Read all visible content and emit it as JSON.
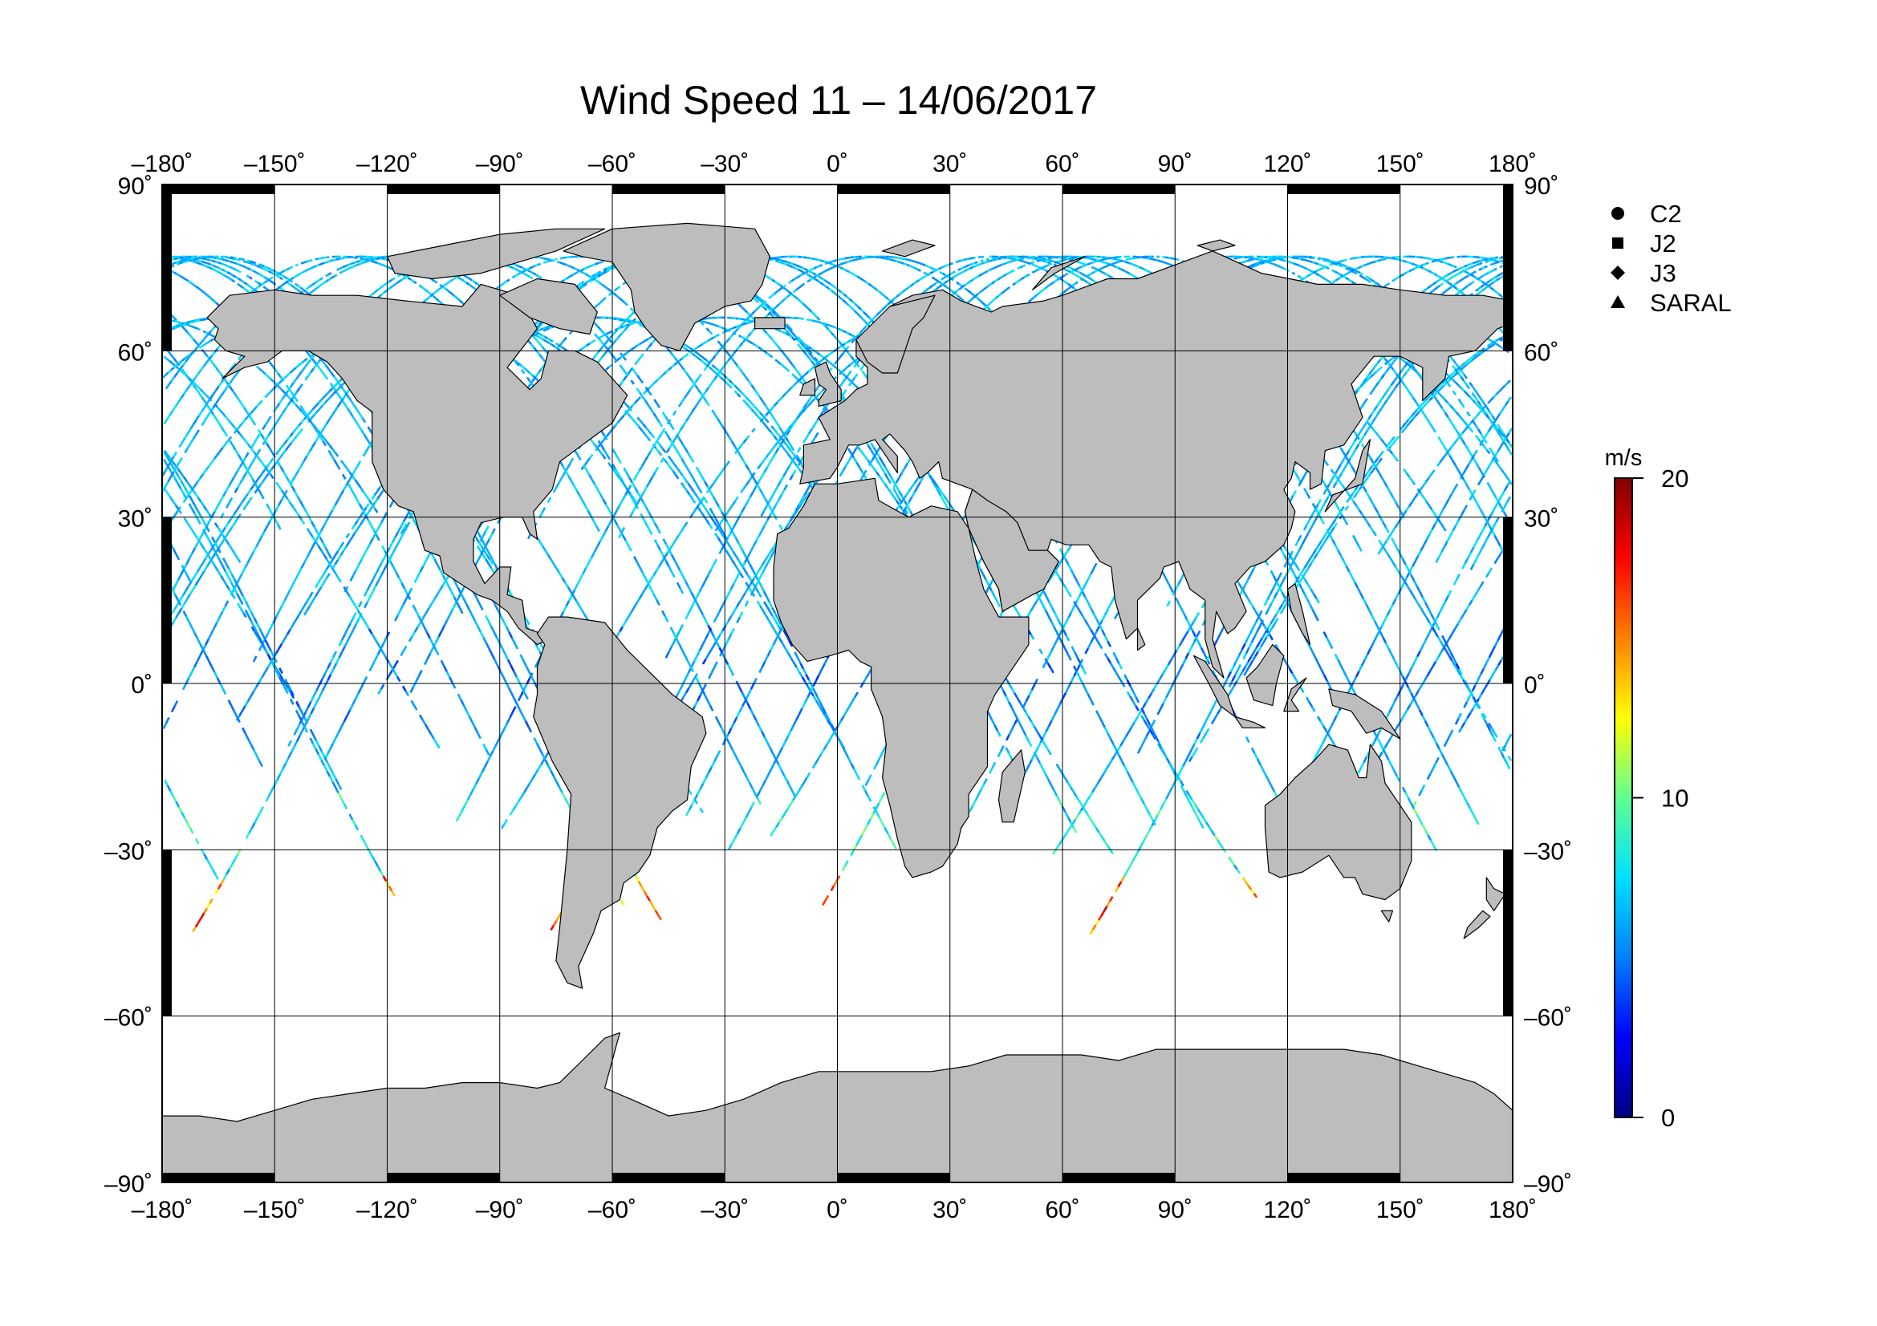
{
  "title": "Wind Speed 11 – 14/06/2017",
  "lon_ticks": [
    "–180˚",
    "–150˚",
    "–120˚",
    "–90˚",
    "–60˚",
    "–30˚",
    "0˚",
    "30˚",
    "60˚",
    "90˚",
    "120˚",
    "150˚",
    "180˚"
  ],
  "lat_ticks": [
    "90˚",
    "60˚",
    "30˚",
    "0˚",
    "–30˚",
    "–60˚",
    "–90˚"
  ],
  "legend": [
    {
      "label": "C2",
      "marker": "circle"
    },
    {
      "label": "J2",
      "marker": "square"
    },
    {
      "label": "J3",
      "marker": "diamond"
    },
    {
      "label": "SARAL",
      "marker": "triangle"
    }
  ],
  "colorbar": {
    "unit": "m/s",
    "min": 0,
    "max": 20,
    "tick_labels": [
      "20",
      "10",
      "0"
    ],
    "colors": [
      "#000080",
      "#0000ff",
      "#0080ff",
      "#00e0ff",
      "#60ff90",
      "#ffff00",
      "#ff8000",
      "#ff0000",
      "#800000"
    ]
  },
  "land_color": "#bdbdbd",
  "projection": "equirectangular",
  "extent": {
    "lon": [
      -180,
      180
    ],
    "lat": [
      -90,
      90
    ]
  }
}
